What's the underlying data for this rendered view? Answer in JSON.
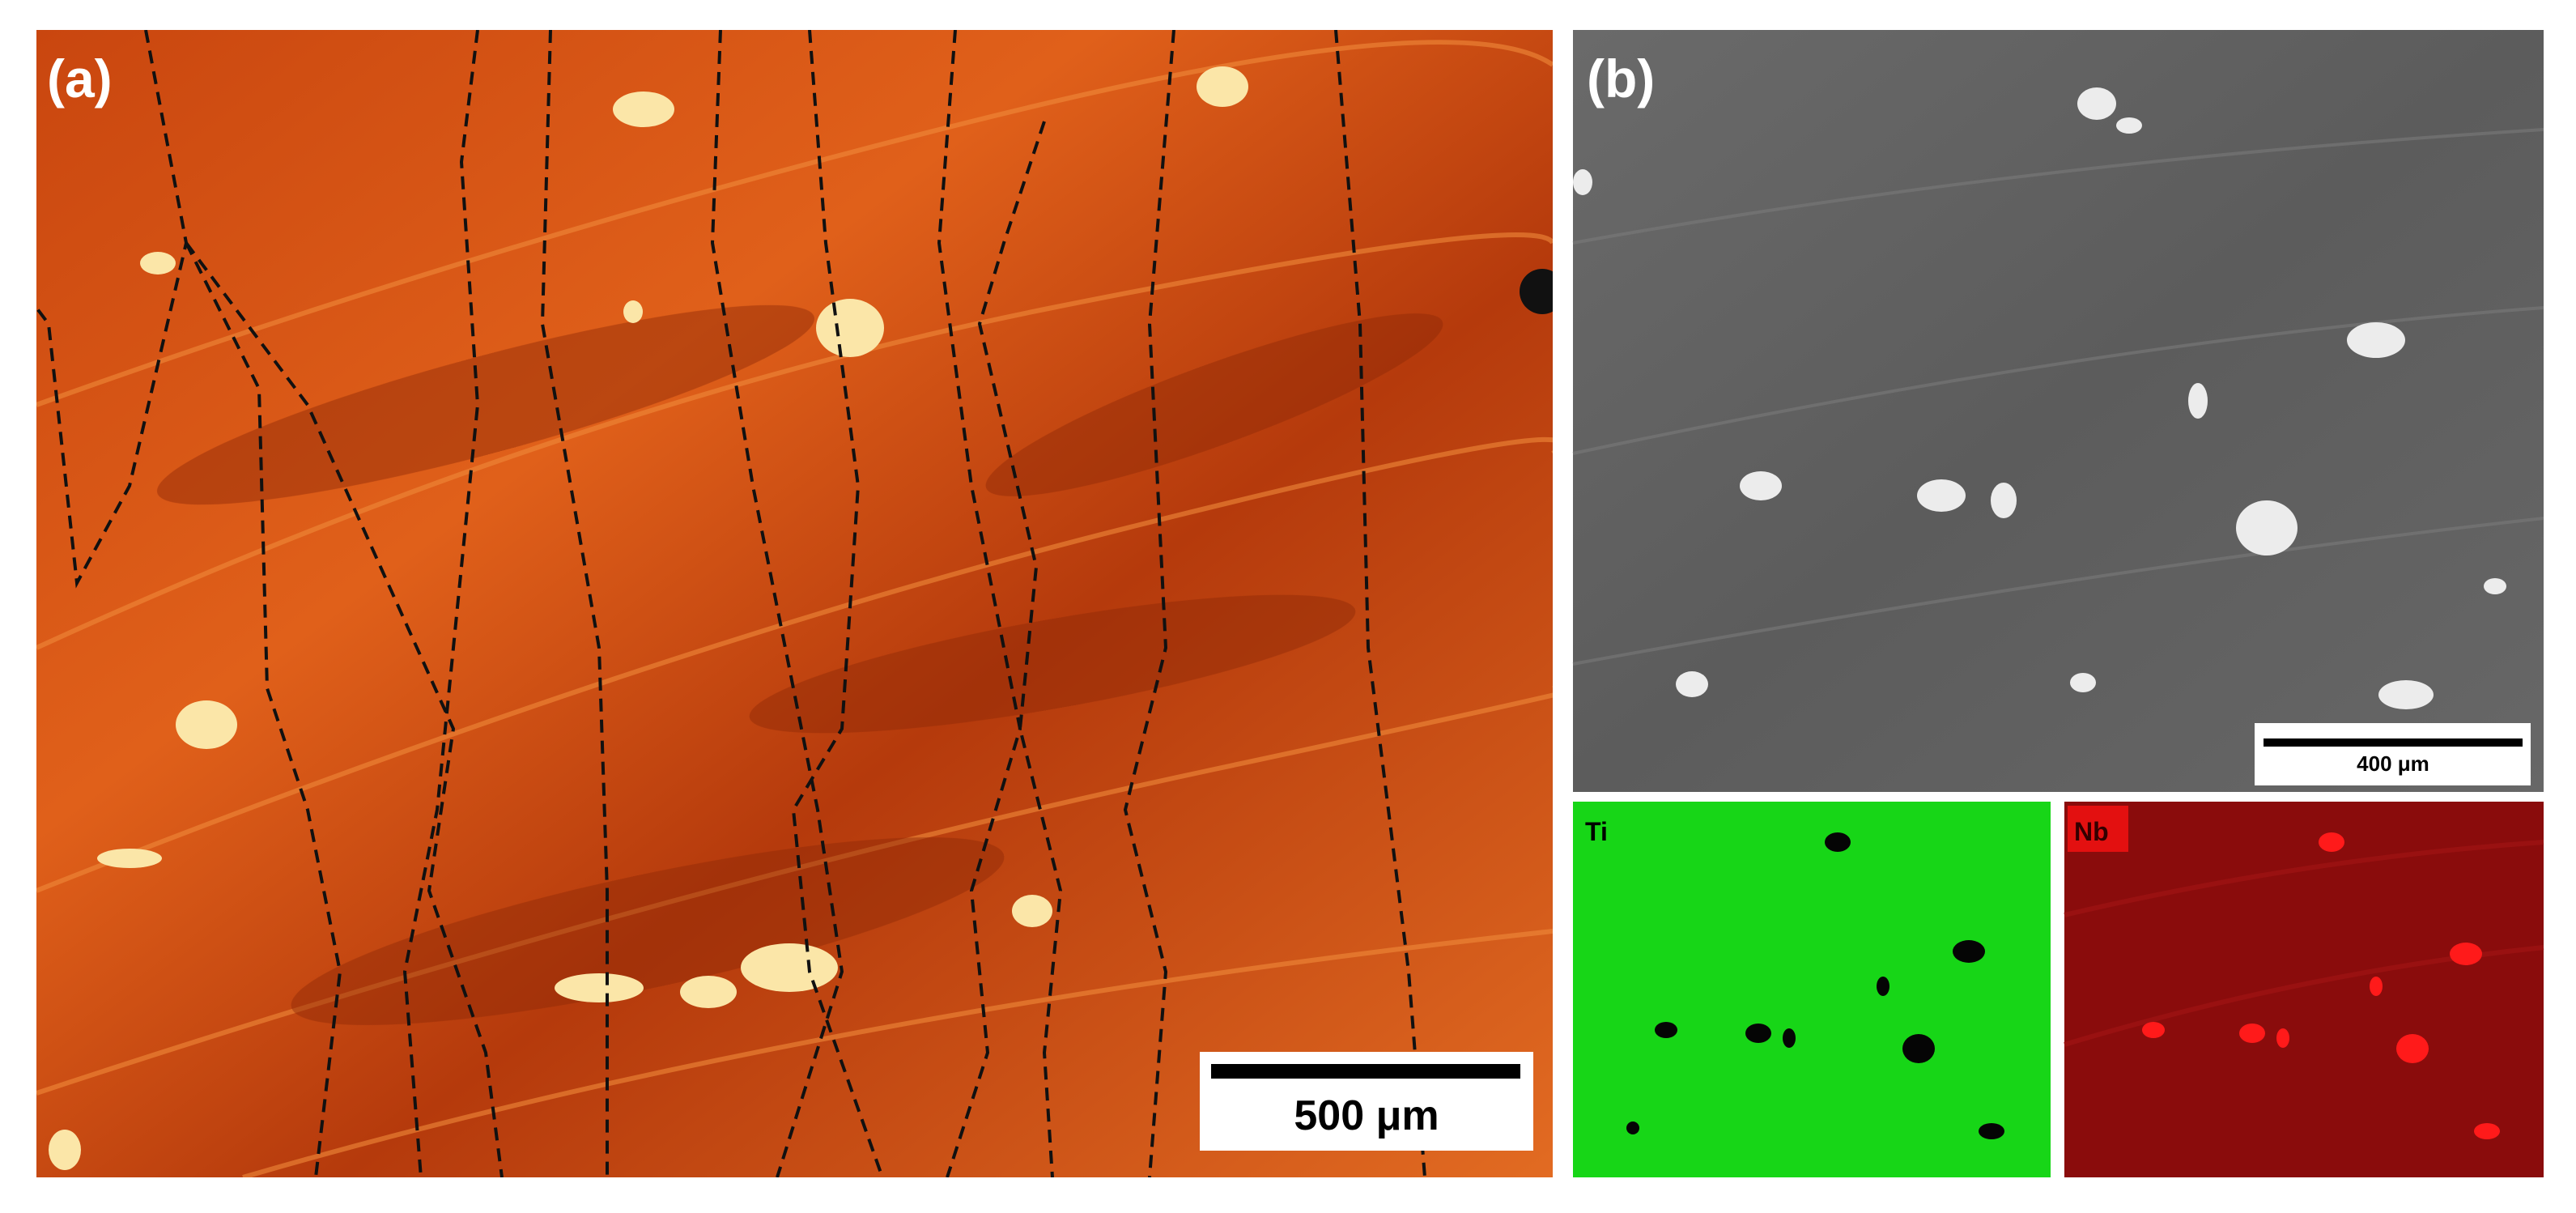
{
  "panels": [
    {
      "label": "(a)",
      "scale_bar": "500 μm"
    },
    {
      "label": "(b)",
      "scale_bar": "400 μm"
    }
  ],
  "maps": [
    {
      "label": "Ti"
    },
    {
      "label": "Nb"
    }
  ]
}
